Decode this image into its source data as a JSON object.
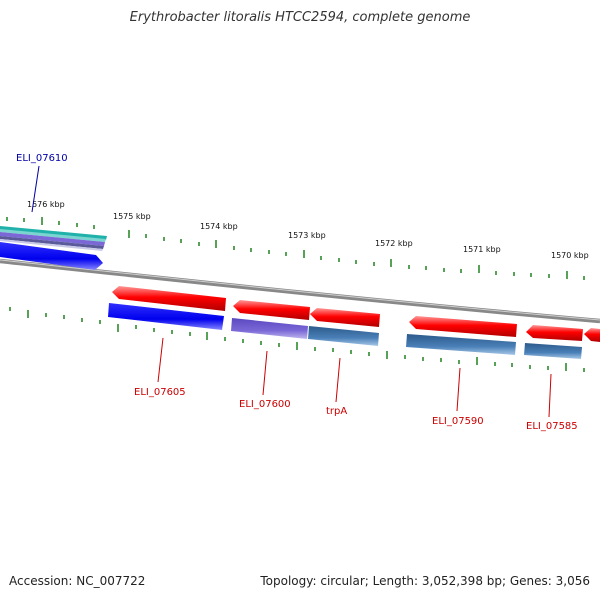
{
  "title": "Erythrobacter litoralis HTCC2594, complete genome",
  "accession": "Accession: NC_007722",
  "summary": "Topology: circular; Length: 3,052,398 bp; Genes: 3,056",
  "ruler": {
    "labels": [
      "1576 kbp",
      "1575 kbp",
      "1574 kbp",
      "1573 kbp",
      "1572 kbp",
      "1571 kbp",
      "1570 kbp"
    ],
    "tick_color": "#2e8b2e"
  },
  "genes": {
    "forward_strand_label": "ELI_07610",
    "reverse_strand_labels": [
      "ELI_07605",
      "ELI_07600",
      "trpA",
      "ELI_07590",
      "ELI_07585"
    ]
  },
  "colors": {
    "cds_red": "#ff0000",
    "blue": "#0000ee",
    "purple": "#7b68d6",
    "steelblue": "#4a80b8",
    "teal": "#20b2aa",
    "backbone": "#888888",
    "label_red": "#cc0000",
    "label_blue": "#0000aa"
  }
}
